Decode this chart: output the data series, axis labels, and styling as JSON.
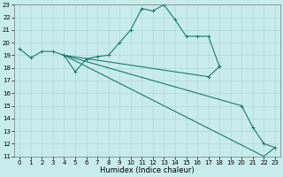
{
  "xlabel": "Humidex (Indice chaleur)",
  "xlim": [
    -0.5,
    23.5
  ],
  "ylim": [
    11,
    23
  ],
  "xticks": [
    0,
    1,
    2,
    3,
    4,
    5,
    6,
    7,
    8,
    9,
    10,
    11,
    12,
    13,
    14,
    15,
    16,
    17,
    18,
    19,
    20,
    21,
    22,
    23
  ],
  "yticks": [
    11,
    12,
    13,
    14,
    15,
    16,
    17,
    18,
    19,
    20,
    21,
    22,
    23
  ],
  "bg_color": "#c8ecec",
  "grid_color": "#b0d8d8",
  "line_color": "#1a7a6e",
  "line1_x": [
    0,
    1,
    2,
    3,
    4,
    5,
    6,
    7,
    8,
    9,
    10,
    11,
    12,
    13,
    14,
    15,
    16,
    17,
    18
  ],
  "line1_y": [
    19.5,
    18.8,
    19.3,
    19.3,
    19.0,
    17.7,
    18.7,
    18.9,
    19.0,
    20.0,
    21.0,
    22.7,
    22.5,
    23.0,
    21.8,
    20.5,
    20.5,
    20.5,
    18.1
  ],
  "line2_x": [
    4,
    22,
    23
  ],
  "line2_y": [
    19.0,
    11.0,
    11.7
  ],
  "line3_x": [
    4,
    20,
    21,
    22,
    23
  ],
  "line3_y": [
    19.0,
    15.0,
    13.3,
    12.0,
    11.7
  ],
  "line4_x": [
    4,
    17,
    18
  ],
  "line4_y": [
    19.0,
    17.3,
    18.1
  ],
  "tick_fontsize": 5.0,
  "xlabel_fontsize": 6.0
}
